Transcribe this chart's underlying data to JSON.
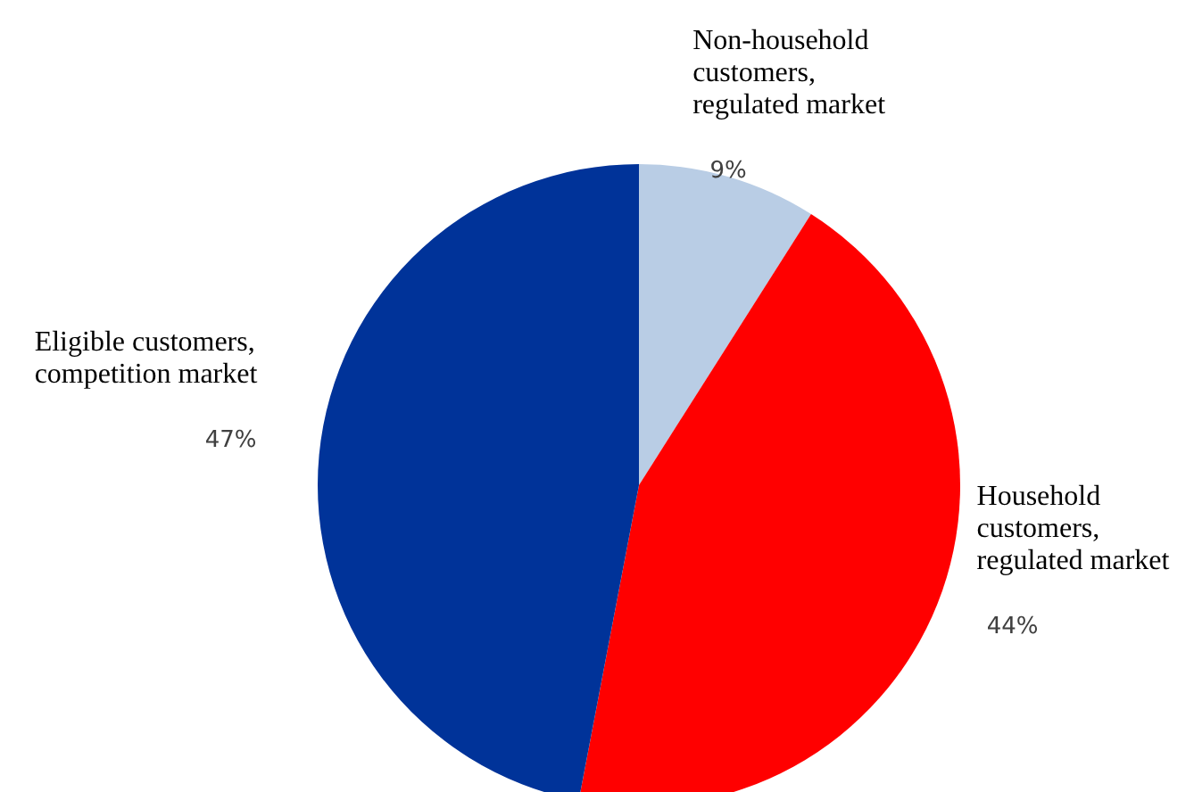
{
  "chart_data": {
    "type": "pie",
    "categories": [
      "Non-household customers, regulated market",
      "Household customers, regulated market",
      "Eligible customers, competition market"
    ],
    "values": [
      9,
      44,
      47
    ],
    "colors": [
      "#b9cde5",
      "#ff0000",
      "#003399"
    ],
    "value_labels": [
      "9%",
      "44%",
      "47%"
    ],
    "legend": false
  }
}
